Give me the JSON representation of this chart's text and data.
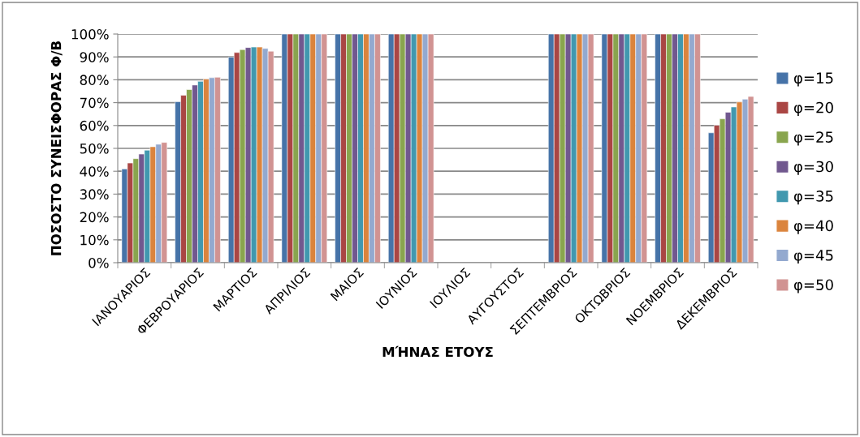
{
  "chart_data": {
    "type": "bar",
    "xlabel": "ΜΉΝΑΣ ΕΤΟΥΣ",
    "ylabel": "ΠΟΣΟΣΤΟ ΣΥΝΕΙΣΦΟΡΑΣ Φ/Β",
    "categories": [
      "ΙΑΝΟΥΑΡΙΟΣ",
      "ΦΕΒΡΟΥΑΡΙΟΣ",
      "ΜΑΡΤΙΟΣ",
      "ΑΠΡΙΛΙΟΣ",
      "ΜΑΙΟΣ",
      "ΙΟΥΝΙΟΣ",
      "ΙΟΥΛΙΟΣ",
      "ΑΥΓΟΥΣΤΟΣ",
      "ΣΕΠΤΕΜΒΡΙΟΣ",
      "ΟΚΤΩΒΡΙΟΣ",
      "ΝΟΕΜΒΡΙΟΣ",
      "ΔΕΚΕΜΒΡΙΟΣ"
    ],
    "series": [
      {
        "name": "φ=15",
        "color": "#4673a8",
        "values": [
          41.0,
          70.4,
          89.9,
          100,
          100,
          100,
          null,
          null,
          100,
          100,
          100,
          56.8
        ]
      },
      {
        "name": "φ=20",
        "color": "#aa4644",
        "values": [
          43.6,
          73.2,
          91.9,
          100,
          100,
          100,
          null,
          null,
          100,
          100,
          100,
          60.1
        ]
      },
      {
        "name": "φ=25",
        "color": "#89a54e",
        "values": [
          45.5,
          75.7,
          93.2,
          100,
          100,
          100,
          null,
          null,
          100,
          100,
          100,
          62.9
        ]
      },
      {
        "name": "φ=30",
        "color": "#71588f",
        "values": [
          47.5,
          77.7,
          94.1,
          100,
          100,
          100,
          null,
          null,
          100,
          100,
          100,
          65.8
        ]
      },
      {
        "name": "φ=35",
        "color": "#4198af",
        "values": [
          49.2,
          79.3,
          94.3,
          100,
          100,
          100,
          null,
          null,
          100,
          100,
          100,
          68.1
        ]
      },
      {
        "name": "φ=40",
        "color": "#db843d",
        "values": [
          50.7,
          80.3,
          94.3,
          100,
          100,
          100,
          null,
          null,
          100,
          100,
          100,
          70.3
        ]
      },
      {
        "name": "φ=45",
        "color": "#93a9cf",
        "values": [
          51.8,
          80.9,
          93.7,
          100,
          100,
          100,
          null,
          null,
          100,
          100,
          100,
          71.5
        ]
      },
      {
        "name": "φ=50",
        "color": "#d19392",
        "values": [
          52.6,
          81.1,
          92.5,
          100,
          100,
          100,
          null,
          null,
          100,
          100,
          100,
          72.7
        ]
      }
    ],
    "ylim": [
      0,
      100
    ],
    "yticks": [
      {
        "value": 0,
        "label": "0%"
      },
      {
        "value": 10,
        "label": "10%"
      },
      {
        "value": 20,
        "label": "20%"
      },
      {
        "value": 30,
        "label": "30%"
      },
      {
        "value": 40,
        "label": "40%"
      },
      {
        "value": 50,
        "label": "50%"
      },
      {
        "value": 60,
        "label": "60%"
      },
      {
        "value": 70,
        "label": "70%"
      },
      {
        "value": 80,
        "label": "80%"
      },
      {
        "value": 90,
        "label": "90%"
      },
      {
        "value": 100,
        "label": "100%"
      }
    ],
    "grid": "y",
    "legend": "right"
  }
}
